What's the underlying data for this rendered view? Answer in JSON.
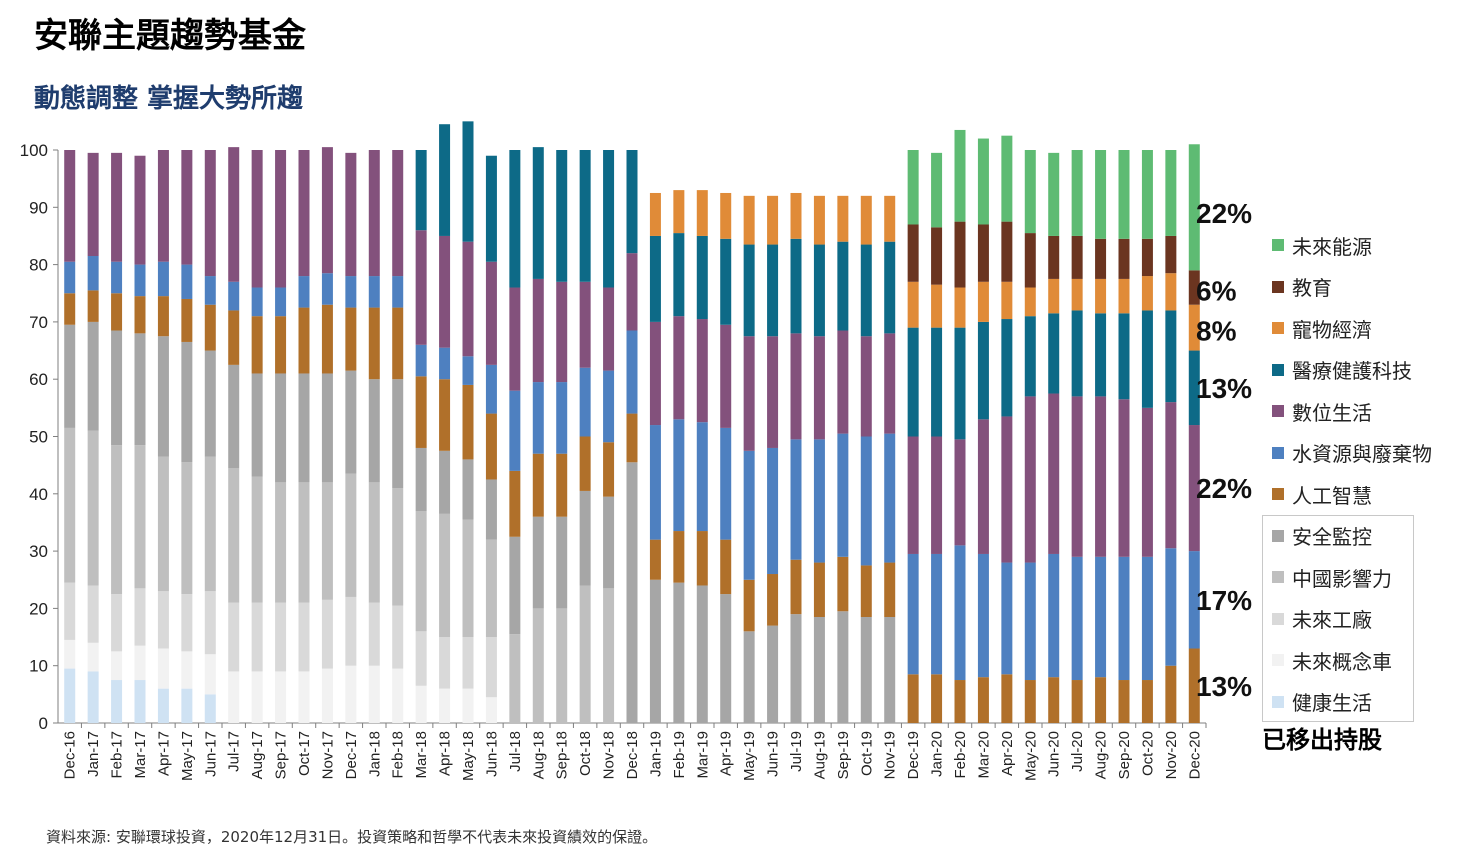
{
  "title": "安聯主題趨勢基金",
  "subtitle": "動態調整 掌握大勢所趨",
  "source": "資料來源: 安聯環球投資，2020年12月31日。投資策略和哲學不代表未來投資績效的保證。",
  "removed_label": "已移出持股",
  "chart_data": {
    "type": "bar",
    "stacked": true,
    "ylim": [
      0,
      100
    ],
    "yticks": [
      0,
      10,
      20,
      30,
      40,
      50,
      60,
      70,
      80,
      90,
      100
    ],
    "categories": [
      "Dec-16",
      "Jan-17",
      "Feb-17",
      "Mar-17",
      "Apr-17",
      "May-17",
      "Jun-17",
      "Jul-17",
      "Aug-17",
      "Sep-17",
      "Oct-17",
      "Nov-17",
      "Dec-17",
      "Jan-18",
      "Feb-18",
      "Mar-18",
      "Apr-18",
      "May-18",
      "Jun-18",
      "Jul-18",
      "Aug-18",
      "Sep-18",
      "Oct-18",
      "Nov-18",
      "Dec-18",
      "Jan-19",
      "Feb-19",
      "Mar-19",
      "Apr-19",
      "May-19",
      "Jun-19",
      "Jul-19",
      "Aug-19",
      "Sep-19",
      "Oct-19",
      "Nov-19",
      "Dec-19",
      "Jan-20",
      "Feb-20",
      "Mar-20",
      "Apr-20",
      "May-20",
      "Jun-20",
      "Jul-20",
      "Aug-20",
      "Sep-20",
      "Oct-20",
      "Nov-20",
      "Dec-20"
    ],
    "series": [
      {
        "name": "健康生活",
        "color": "#cfe2f3",
        "values": [
          9.5,
          9,
          7.5,
          7.5,
          6,
          6,
          5,
          0,
          0,
          0,
          0,
          0,
          0,
          0,
          0,
          0,
          0,
          0,
          0,
          0,
          0,
          0,
          0,
          0,
          0,
          0,
          0,
          0,
          0,
          0,
          0,
          0,
          0,
          0,
          0,
          0,
          0,
          0,
          0,
          0,
          0,
          0,
          0,
          0,
          0,
          0,
          0,
          0,
          0
        ]
      },
      {
        "name": "未來概念車",
        "color": "#f2f2f2",
        "values": [
          5,
          5,
          5,
          6,
          7,
          6.5,
          7,
          9,
          9,
          9,
          9,
          9.5,
          10,
          10,
          9.5,
          6.5,
          6,
          6,
          4.5,
          0,
          0,
          0,
          0,
          0,
          0,
          0,
          0,
          0,
          0,
          0,
          0,
          0,
          0,
          0,
          0,
          0,
          0,
          0,
          0,
          0,
          0,
          0,
          0,
          0,
          0,
          0,
          0,
          0,
          0
        ]
      },
      {
        "name": "未來工廠",
        "color": "#d9d9d9",
        "values": [
          10,
          10,
          10,
          10,
          10,
          10,
          11,
          12,
          12,
          12,
          12,
          12,
          12,
          11,
          11,
          9.5,
          9,
          9,
          10.5,
          0,
          0,
          0,
          0,
          0,
          0,
          0,
          0,
          0,
          0,
          0,
          0,
          0,
          0,
          0,
          0,
          0,
          0,
          0,
          0,
          0,
          0,
          0,
          0,
          0,
          0,
          0,
          0,
          0,
          0
        ]
      },
      {
        "name": "中國影響力",
        "color": "#bfbfbf",
        "values": [
          27,
          27,
          26,
          25,
          23.5,
          23,
          23.5,
          23.5,
          22,
          21,
          21,
          20.5,
          21.5,
          21,
          20.5,
          21,
          21.5,
          20.5,
          17,
          15.5,
          20,
          20,
          24,
          23.5,
          0,
          0,
          0,
          0,
          0,
          0,
          0,
          0,
          0,
          0,
          0,
          0,
          0,
          0,
          0,
          0,
          0,
          0,
          0,
          0,
          0,
          0,
          0,
          0,
          0
        ]
      },
      {
        "name": "安全監控",
        "color": "#a6a6a6",
        "values": [
          18,
          19,
          20,
          19.5,
          21,
          21,
          18.5,
          18,
          18,
          19,
          19,
          19,
          18,
          18,
          19,
          11,
          11,
          10.5,
          10.5,
          17,
          16,
          16,
          16.5,
          16,
          45.5,
          25,
          24.5,
          24,
          22.5,
          16,
          17,
          19,
          18.5,
          19.5,
          18.5,
          18.5,
          0,
          0,
          0,
          0,
          0,
          0,
          0,
          0,
          0,
          0,
          0,
          0,
          0
        ]
      },
      {
        "name": "人工智慧",
        "color": "#b0702a",
        "values": [
          5.5,
          5.5,
          6.5,
          6.5,
          7,
          7.5,
          8,
          9.5,
          10,
          10,
          11.5,
          12,
          11,
          12.5,
          12.5,
          12.5,
          12.5,
          13,
          11.5,
          11.5,
          11,
          11,
          9.5,
          9.5,
          8.5,
          7,
          9,
          9.5,
          9.5,
          9,
          9,
          9.5,
          9.5,
          9.5,
          9,
          9.5,
          8.5,
          8.5,
          7.5,
          8,
          8.5,
          7.5,
          8,
          7.5,
          8,
          7.5,
          7.5,
          10,
          13
        ]
      },
      {
        "name": "水資源與廢棄物",
        "color": "#4e80c0",
        "values": [
          5.5,
          6,
          5.5,
          5.5,
          6,
          6,
          5,
          5,
          5,
          5,
          5.5,
          5.5,
          5.5,
          5.5,
          5.5,
          5.5,
          5.5,
          5,
          8.5,
          14,
          12.5,
          12.5,
          12,
          12.5,
          14.5,
          20,
          19.5,
          19,
          19.5,
          22.5,
          22,
          21,
          21.5,
          21.5,
          22.5,
          22.5,
          21,
          21,
          23.5,
          21.5,
          19.5,
          20.5,
          21.5,
          21.5,
          21,
          21.5,
          21.5,
          20.5,
          17
        ]
      },
      {
        "name": "數位生活",
        "color": "#83517c",
        "values": [
          19.5,
          18,
          19,
          19,
          19.5,
          20,
          22,
          23.5,
          24,
          24,
          22,
          22,
          21.5,
          22,
          22,
          20,
          19.5,
          20,
          18,
          18,
          18,
          17.5,
          15,
          14.5,
          13.5,
          18,
          18,
          18,
          18,
          20,
          19.5,
          18.5,
          18,
          18,
          17.5,
          17.5,
          20.5,
          20.5,
          18.5,
          23.5,
          25.5,
          29,
          28,
          28,
          28,
          27.5,
          26,
          25.5,
          22
        ]
      },
      {
        "name": "醫療健護科技",
        "color": "#0d6a87",
        "values": [
          0,
          0,
          0,
          0,
          0,
          0,
          0,
          0,
          0,
          0,
          0,
          0,
          0,
          0,
          0,
          14,
          19.5,
          21,
          18.5,
          24,
          23,
          23,
          23,
          24,
          18,
          15,
          14.5,
          14.5,
          15,
          16,
          16,
          16.5,
          16,
          15.5,
          16,
          16,
          19,
          19,
          19.5,
          17,
          17,
          14,
          14,
          15,
          14.5,
          15,
          17,
          16,
          13
        ]
      },
      {
        "name": "寵物經濟",
        "color": "#e08b38",
        "values": [
          0,
          0,
          0,
          0,
          0,
          0,
          0,
          0,
          0,
          0,
          0,
          0,
          0,
          0,
          0,
          0,
          0,
          0,
          0,
          0,
          0,
          0,
          0,
          0,
          0,
          7.5,
          7.5,
          8,
          8,
          8.5,
          8.5,
          8,
          8.5,
          8,
          8.5,
          8,
          8,
          7.5,
          7,
          7,
          6.5,
          5,
          6,
          5.5,
          6,
          6,
          6,
          6.5,
          8
        ]
      },
      {
        "name": "教育",
        "color": "#6b3520",
        "values": [
          0,
          0,
          0,
          0,
          0,
          0,
          0,
          0,
          0,
          0,
          0,
          0,
          0,
          0,
          0,
          0,
          0,
          0,
          0,
          0,
          0,
          0,
          0,
          0,
          0,
          0,
          0,
          0,
          0,
          0,
          0,
          0,
          0,
          0,
          0,
          0,
          10,
          10,
          11.5,
          10,
          10.5,
          9.5,
          7.5,
          7.5,
          7,
          7,
          6.5,
          6.5,
          6
        ]
      },
      {
        "name": "未來能源",
        "color": "#5ebb73",
        "values": [
          0,
          0,
          0,
          0,
          0,
          0,
          0,
          0,
          0,
          0,
          0,
          0,
          0,
          0,
          0,
          0,
          0,
          0,
          0,
          0,
          0,
          0,
          0,
          0,
          0,
          0,
          0,
          0,
          0,
          0,
          0,
          0,
          0,
          0,
          0,
          0,
          13,
          13,
          16,
          15,
          15,
          14.5,
          14.5,
          15,
          15.5,
          15.5,
          15.5,
          15,
          22
        ]
      }
    ],
    "annotations": [
      {
        "text": "22%",
        "y": 89
      },
      {
        "text": "6%",
        "y": 75.5
      },
      {
        "text": "8%",
        "y": 68.5
      },
      {
        "text": "13%",
        "y": 58.5
      },
      {
        "text": "22%",
        "y": 41
      },
      {
        "text": "17%",
        "y": 21.5
      },
      {
        "text": "13%",
        "y": 6.5
      }
    ],
    "legend_groups": {
      "current": [
        "未來能源",
        "教育",
        "寵物經濟",
        "醫療健護科技",
        "數位生活",
        "水資源與廢棄物",
        "人工智慧"
      ],
      "removed": [
        "安全監控",
        "中國影響力",
        "未來工廠",
        "未來概念車",
        "健康生活"
      ]
    }
  }
}
